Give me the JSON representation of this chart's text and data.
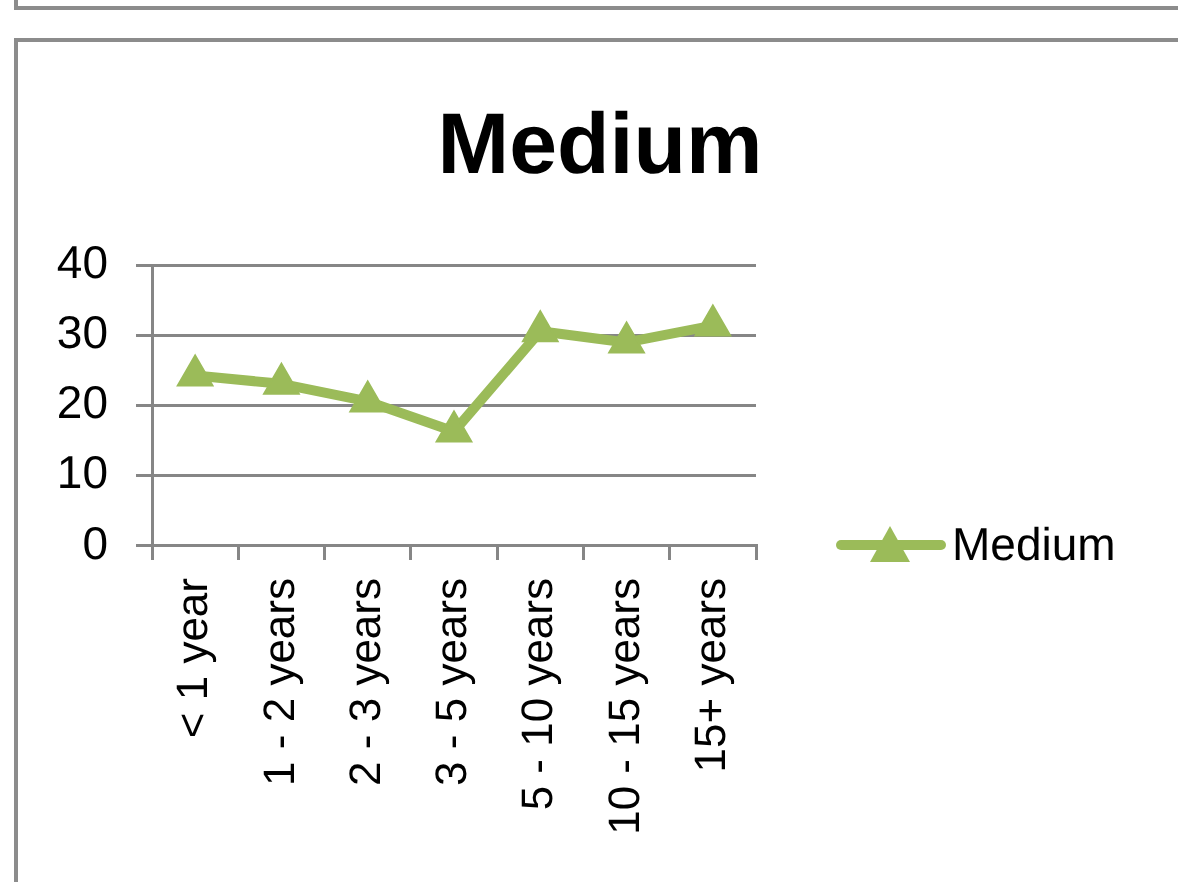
{
  "chart_data": {
    "type": "line",
    "title": "Medium",
    "categories": [
      "< 1 year",
      "1 - 2 years",
      "2 - 3 years",
      "3 - 5 years",
      "5 - 10 years",
      "10 - 15 years",
      "15+ years"
    ],
    "series": [
      {
        "name": "Medium",
        "color": "#9bbb59",
        "values": [
          24.3,
          23.1,
          20.6,
          16.3,
          30.6,
          29.0,
          31.4
        ]
      }
    ],
    "ylim": [
      0,
      40
    ],
    "yticks": [
      0,
      10,
      20,
      30,
      40
    ],
    "grid": "y",
    "legend": "right",
    "marker": "triangle"
  }
}
